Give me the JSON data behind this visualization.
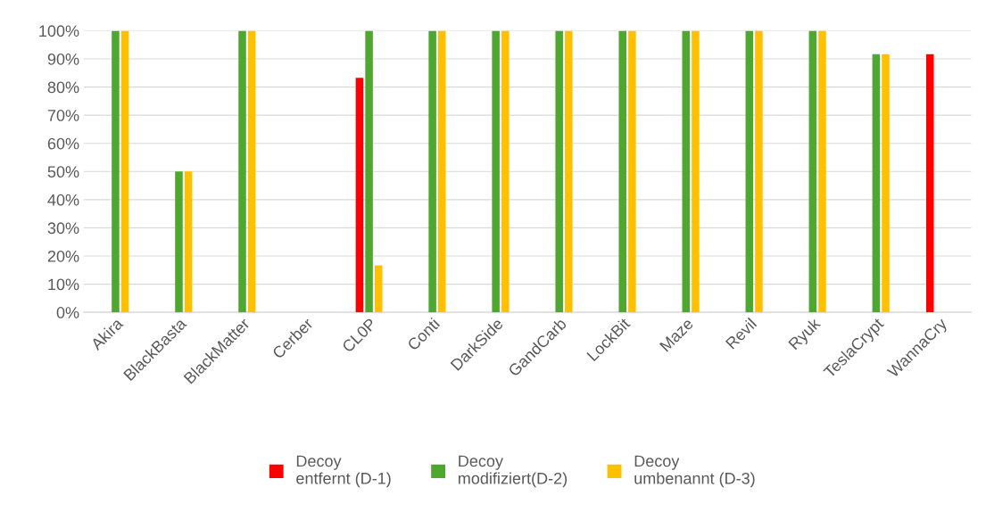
{
  "chart_data": {
    "type": "bar",
    "categories": [
      "Akira",
      "BlackBasta",
      "BlackMatter",
      "Cerber",
      "CL0P",
      "Conti",
      "DarkSide",
      "GandCarb",
      "LockBit",
      "Maze",
      "Revil",
      "Ryuk",
      "TeslaCrypt",
      "WannaCry"
    ],
    "series": [
      {
        "name": "Decoy\nentfernt (D-1)",
        "color": "#ff0000",
        "values": [
          0,
          0,
          0,
          0,
          83.3,
          0,
          0,
          0,
          0,
          0,
          0,
          0,
          0,
          91.7
        ]
      },
      {
        "name": "Decoy\nmodifiziert(D-2)",
        "color": "#4ea72e",
        "values": [
          100,
          50,
          100,
          0,
          100,
          100,
          100,
          100,
          100,
          100,
          100,
          100,
          91.7,
          0
        ]
      },
      {
        "name": "Decoy\numbenannt (D-3)",
        "color": "#ffc000",
        "values": [
          100,
          50,
          100,
          0,
          16.7,
          100,
          100,
          100,
          100,
          100,
          100,
          100,
          91.7,
          0
        ]
      }
    ],
    "ylim": [
      0,
      100
    ],
    "yticks": [
      {
        "value": 0,
        "label": "0%"
      },
      {
        "value": 10,
        "label": "10%"
      },
      {
        "value": 20,
        "label": "20%"
      },
      {
        "value": 30,
        "label": "30%"
      },
      {
        "value": 40,
        "label": "40%"
      },
      {
        "value": 50,
        "label": "50%"
      },
      {
        "value": 60,
        "label": "60%"
      },
      {
        "value": 70,
        "label": "70%"
      },
      {
        "value": 80,
        "label": "80%"
      },
      {
        "value": 90,
        "label": "90%"
      },
      {
        "value": 100,
        "label": "100%"
      }
    ],
    "grid": "y",
    "legend": "bottom"
  }
}
